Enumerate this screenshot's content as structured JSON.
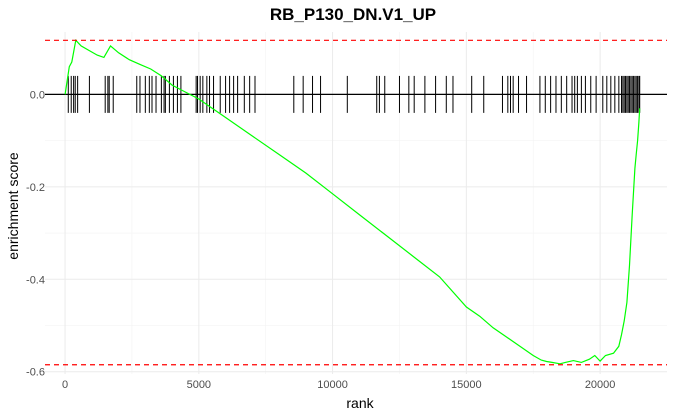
{
  "chart_data": {
    "type": "line",
    "title": "RB_P130_DN.V1_UP",
    "xlabel": "rank",
    "ylabel": "enrichment score",
    "xlim": [
      -750,
      22500
    ],
    "ylim": [
      -0.605,
      0.135
    ],
    "x_ticks": [
      0,
      5000,
      10000,
      15000,
      20000
    ],
    "x_tick_labels": [
      "0",
      "5000",
      "10000",
      "15000",
      "20000"
    ],
    "y_ticks": [
      0.0,
      -0.2,
      -0.4,
      -0.6
    ],
    "y_tick_labels": [
      "0.0",
      "-0.2",
      "-0.4",
      "-0.6"
    ],
    "grid": true,
    "zero_line": 0.0,
    "max_es": 0.117,
    "min_es": -0.585,
    "reference_line_color": "#ff0000",
    "curve_color": "#00ff00",
    "tick_color": "#000000",
    "hit_tick_range": [
      -0.04,
      0.04
    ],
    "series": [
      {
        "x": [
          0,
          80,
          160,
          250,
          400,
          600,
          900,
          1200,
          1450,
          1700,
          2000,
          2400,
          2800,
          3200,
          3600,
          4000,
          4500,
          5000,
          6000,
          7000,
          8000,
          9000,
          10000,
          11000,
          12000,
          13000,
          14000,
          15000,
          15500,
          16000,
          16500,
          17000,
          17500,
          17800,
          18000,
          18200,
          18500,
          18700,
          19000,
          19300,
          19600,
          19800,
          20000,
          20200,
          20500,
          20700,
          20800,
          20900,
          21000,
          21100,
          21200,
          21300,
          21350,
          21400,
          21450,
          21480
        ],
        "y": [
          0.0,
          0.03,
          0.06,
          0.07,
          0.117,
          0.105,
          0.095,
          0.085,
          0.08,
          0.105,
          0.09,
          0.075,
          0.065,
          0.055,
          0.04,
          0.02,
          0.005,
          -0.01,
          -0.05,
          -0.09,
          -0.13,
          -0.17,
          -0.215,
          -0.26,
          -0.305,
          -0.35,
          -0.395,
          -0.46,
          -0.48,
          -0.505,
          -0.525,
          -0.545,
          -0.565,
          -0.575,
          -0.578,
          -0.58,
          -0.583,
          -0.58,
          -0.576,
          -0.58,
          -0.573,
          -0.565,
          -0.577,
          -0.565,
          -0.56,
          -0.545,
          -0.52,
          -0.49,
          -0.45,
          -0.37,
          -0.26,
          -0.16,
          -0.13,
          -0.1,
          -0.06,
          -0.03
        ]
      }
    ],
    "hit_ranks": [
      120,
      230,
      320,
      380,
      470,
      910,
      1500,
      1600,
      1650,
      1800,
      2680,
      2800,
      3000,
      3150,
      3250,
      3400,
      3600,
      3700,
      3750,
      3900,
      4050,
      4200,
      4330,
      4900,
      4950,
      5050,
      5150,
      5300,
      5400,
      5550,
      5800,
      6000,
      6150,
      6300,
      6450,
      6700,
      6900,
      7100,
      8550,
      8900,
      9250,
      9550,
      10550,
      11650,
      11750,
      11950,
      12500,
      12850,
      13050,
      13450,
      13850,
      14250,
      14500,
      15200,
      15650,
      16350,
      16550,
      16650,
      16750,
      16950,
      17250,
      17750,
      17950,
      18150,
      18350,
      18550,
      18750,
      18950,
      19050,
      19150,
      19300,
      19450,
      19650,
      19850,
      20100,
      20250,
      20400,
      20550,
      20700,
      20800,
      20850,
      20900,
      20950,
      21000,
      21050,
      21100,
      21150,
      21200,
      21250,
      21300,
      21350,
      21400,
      21450,
      21480
    ]
  }
}
